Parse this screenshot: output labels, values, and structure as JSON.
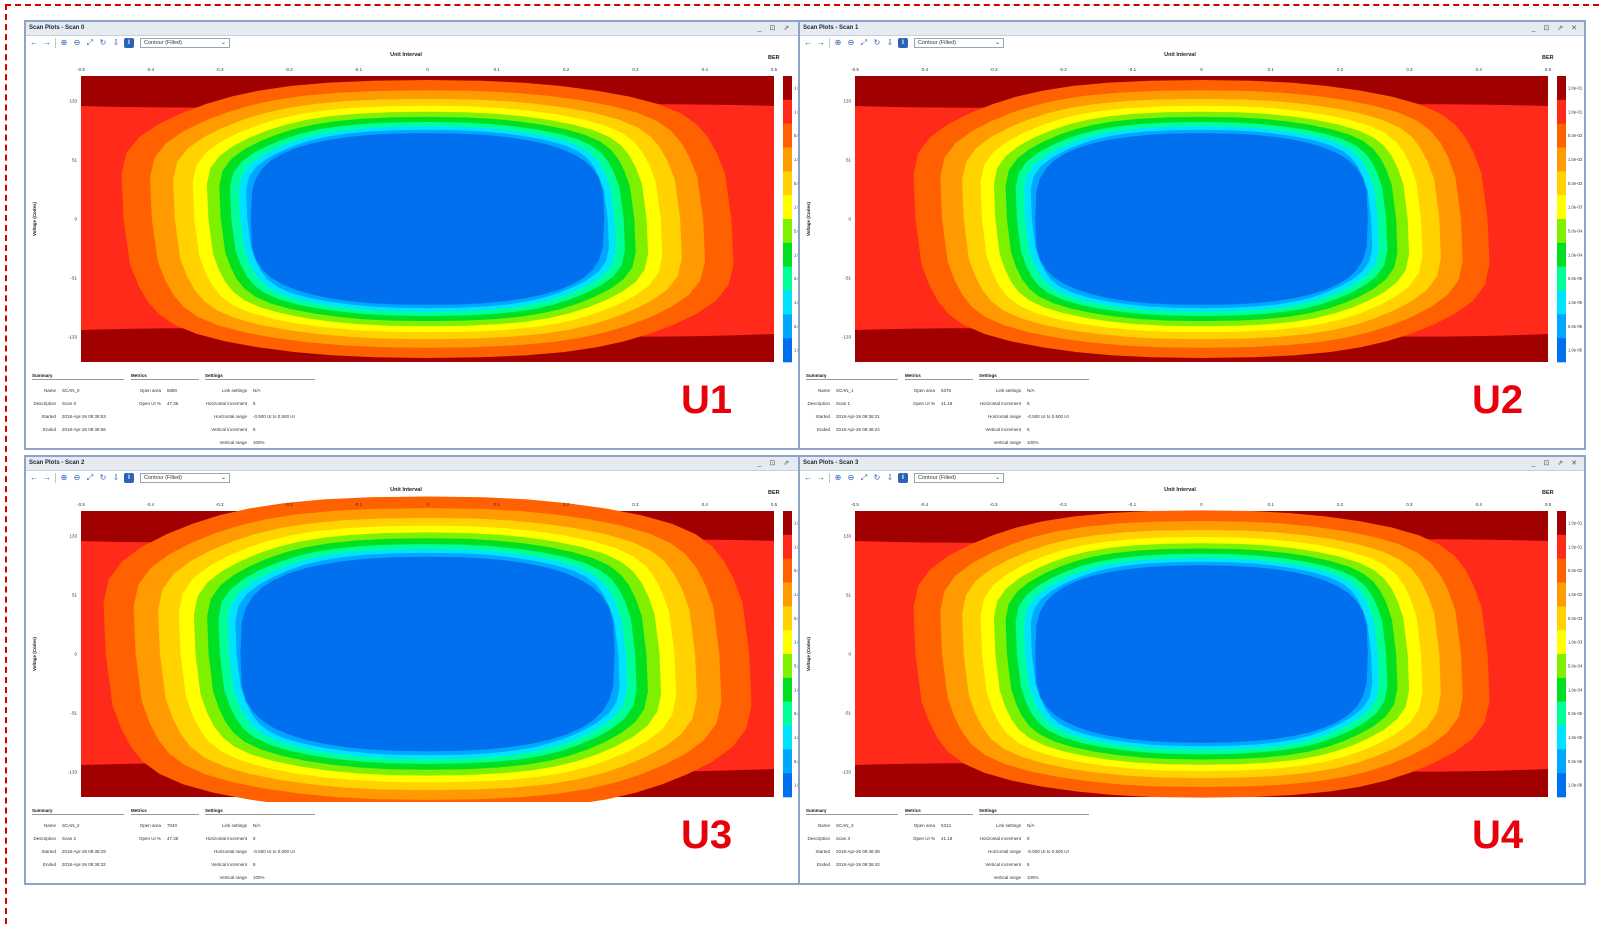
{
  "colors": {
    "frame_border": "#d40000",
    "label": "#e8000b",
    "levels": [
      "#0070ee",
      "#00a6ff",
      "#00e3ff",
      "#00ff99",
      "#00e020",
      "#7ff000",
      "#ffff00",
      "#ffd200",
      "#ff9a00",
      "#ff6000",
      "#ff2a1a",
      "#a00000"
    ]
  },
  "colorbar_ticks": [
    "1.0e-01",
    "1.0e-01",
    "5.0e-02",
    "1.0e-02",
    "5.0e-03",
    "1.0e-03",
    "5.0e-04",
    "1.0e-04",
    "5.0e-05",
    "1.0e-05",
    "5.0e-06",
    "1.0e-06"
  ],
  "x_ticks": [
    "-0.5",
    "-0.4",
    "-0.3",
    "-0.2",
    "-0.1",
    "0",
    "0.1",
    "0.2",
    "0.3",
    "0.4",
    "0.5"
  ],
  "y_ticks": [
    "133",
    "51",
    "0",
    "-51",
    "-133"
  ],
  "plots": [
    {
      "title": "Scan Plots - Scan 0",
      "window_controls": "_ ⊡ ⇗ ✕",
      "plot_type": "Contour (Filled)",
      "x_title": "Unit Interval",
      "y_title": "Voltage (Codes)",
      "colorbar_title": "BER",
      "label": "U1",
      "summary": {
        "heading": "Summary",
        "name_k": "Name",
        "name_v": "SCAN_0",
        "desc_k": "Description",
        "desc_v": "Scan 0",
        "started_k": "Started",
        "started_v": "2018-Apr-26 09:38:53",
        "ended_k": "Ended",
        "ended_v": "2018-Apr-26 09:38:56"
      },
      "metrics": {
        "heading": "Metrics",
        "area_k": "Open area",
        "area_v": "5880",
        "ui_k": "Open UI %",
        "ui_v": "47.36"
      },
      "settings": {
        "heading": "Settings",
        "link_k": "Link settings",
        "link_v": "N/A",
        "hinc_k": "Horizontal increment",
        "hinc_v": "8",
        "hrange_k": "Horizontal range",
        "hrange_v": "-0.500 UI to 0.500 UI",
        "vinc_k": "Vertical increment",
        "vinc_v": "8",
        "vrange_k": "Vertical range",
        "vrange_v": "100%"
      }
    },
    {
      "title": "Scan Plots - Scan 1",
      "window_controls": "_ ⊡ ⇗ ✕",
      "plot_type": "Contour (Filled)",
      "x_title": "Unit Interval",
      "y_title": "Voltage (Codes)",
      "colorbar_title": "BER",
      "label": "U2",
      "summary": {
        "heading": "Summary",
        "name_k": "Name",
        "name_v": "SCAN_1",
        "desc_k": "Description",
        "desc_v": "Scan 1",
        "started_k": "Started",
        "started_v": "2018-Apr-26 09:38:21",
        "ended_k": "Ended",
        "ended_v": "2018-Apr-26 09:38:24"
      },
      "metrics": {
        "heading": "Metrics",
        "area_k": "Open area",
        "area_v": "5376",
        "ui_k": "Open UI %",
        "ui_v": "41.18"
      },
      "settings": {
        "heading": "Settings",
        "link_k": "Link settings",
        "link_v": "N/A",
        "hinc_k": "Horizontal increment",
        "hinc_v": "8",
        "hrange_k": "Horizontal range",
        "hrange_v": "-0.500 UI to 0.500 UI",
        "vinc_k": "Vertical increment",
        "vinc_v": "8",
        "vrange_k": "Vertical range",
        "vrange_v": "100%"
      }
    },
    {
      "title": "Scan Plots - Scan 2",
      "window_controls": "_ ⊡ ⇗ ✕",
      "plot_type": "Contour (Filled)",
      "x_title": "Unit Interval",
      "y_title": "Voltage (Codes)",
      "colorbar_title": "BER",
      "label": "U3",
      "summary": {
        "heading": "Summary",
        "name_k": "Name",
        "name_v": "SCAN_2",
        "desc_k": "Description",
        "desc_v": "Scan 2",
        "started_k": "Started",
        "started_v": "2018-Apr-26 09:38:29",
        "ended_k": "Ended",
        "ended_v": "2018-Apr-26 09:38:32"
      },
      "metrics": {
        "heading": "Metrics",
        "area_k": "Open area",
        "area_v": "7040",
        "ui_k": "Open UI %",
        "ui_v": "47.36"
      },
      "settings": {
        "heading": "Settings",
        "link_k": "Link settings",
        "link_v": "N/A",
        "hinc_k": "Horizontal increment",
        "hinc_v": "8",
        "hrange_k": "Horizontal range",
        "hrange_v": "-0.500 UI to 0.500 UI",
        "vinc_k": "Vertical increment",
        "vinc_v": "8",
        "vrange_k": "Vertical range",
        "vrange_v": "100%"
      }
    },
    {
      "title": "Scan Plots - Scan 3",
      "window_controls": "_ ⊡ ⇗ ✕",
      "plot_type": "Contour (Filled)",
      "x_title": "Unit Interval",
      "y_title": "Voltage (Codes)",
      "colorbar_title": "BER",
      "label": "U4",
      "summary": {
        "heading": "Summary",
        "name_k": "Name",
        "name_v": "SCAN_3",
        "desc_k": "Description",
        "desc_v": "Scan 3",
        "started_k": "Started",
        "started_v": "2018-Apr-26 09:38:39",
        "ended_k": "Ended",
        "ended_v": "2018-Apr-26 09:38:42"
      },
      "metrics": {
        "heading": "Metrics",
        "area_k": "Open area",
        "area_v": "5312",
        "ui_k": "Open UI %",
        "ui_v": "41.18"
      },
      "settings": {
        "heading": "Settings",
        "link_k": "Link settings",
        "link_v": "N/A",
        "hinc_k": "Horizontal increment",
        "hinc_v": "8",
        "hrange_k": "Horizontal range",
        "hrange_v": "-0.500 UI to 0.500 UI",
        "vinc_k": "Vertical increment",
        "vinc_v": "8",
        "vrange_k": "Vertical range",
        "vrange_v": "100%"
      }
    }
  ]
}
